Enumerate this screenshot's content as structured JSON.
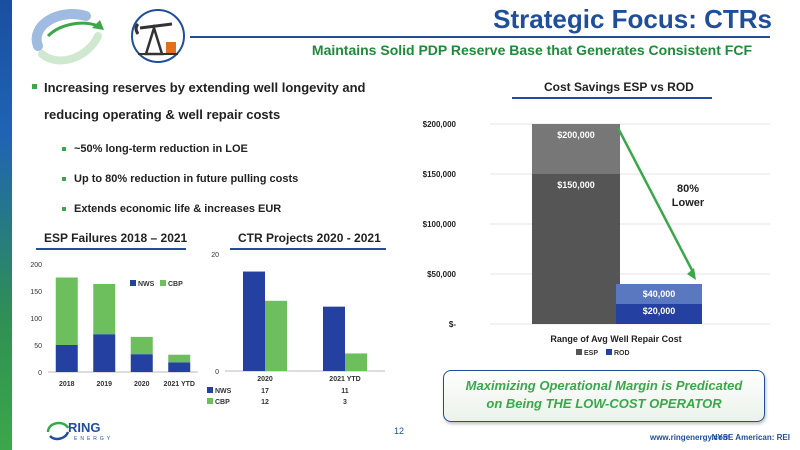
{
  "header": {
    "title": "Strategic Focus: CTRs",
    "subtitle": "Maintains Solid PDP Reserve Base that Generates Consistent FCF"
  },
  "bullets": {
    "main": "Increasing reserves by extending well longevity and reducing operating & well repair costs",
    "sub": [
      "~50% long-term reduction in LOE",
      "Up to 80% reduction in future pulling costs",
      "Extends economic life & increases EUR"
    ]
  },
  "colors": {
    "brand_blue": "#1f4e9b",
    "brand_green": "#3aa84a",
    "esp_dark": "#555555",
    "esp_light": "#777777",
    "rod_blue": "#2440a0",
    "rod_light": "#5a78c0"
  },
  "icons": [
    "ring-swoosh-logo-icon",
    "pump-jack-icon",
    "ring-energy-logo-icon"
  ],
  "chart_data": [
    {
      "type": "bar",
      "title": "ESP Failures 2018 – 2021",
      "categories": [
        "2018",
        "2019",
        "2020",
        "2021 YTD"
      ],
      "stacked": true,
      "series": [
        {
          "name": "NWS",
          "values": [
            50,
            70,
            33,
            18
          ]
        },
        {
          "name": "CBP",
          "values": [
            125,
            93,
            32,
            14
          ]
        }
      ],
      "ylim": [
        0,
        200
      ],
      "yticks": [
        "0",
        "50",
        "100",
        "150",
        "200"
      ],
      "legend": "inside top-right"
    },
    {
      "type": "bar",
      "title": "CTR Projects 2020 - 2021",
      "categories": [
        "2020",
        "2021 YTD"
      ],
      "stacked": false,
      "series": [
        {
          "name": "NWS",
          "values": [
            17,
            11
          ]
        },
        {
          "name": "CBP",
          "values": [
            12,
            3
          ]
        }
      ],
      "ylim": [
        0,
        20
      ],
      "yticks": [
        "0",
        "20"
      ],
      "legend": "data table below"
    },
    {
      "type": "bar",
      "title": "Cost Savings ESP vs ROD",
      "categories": [
        "Range of Avg Well Repair Cost"
      ],
      "stacked": true,
      "series": [
        {
          "name": "ESP",
          "low": 150000,
          "high": 200000,
          "low_label": "$150,000",
          "high_label": "$200,000"
        },
        {
          "name": "ROD",
          "low": 20000,
          "high": 40000,
          "low_label": "$20,000",
          "high_label": "$40,000"
        }
      ],
      "ylim": [
        0,
        200000
      ],
      "yticks": [
        "$-",
        "$50,000",
        "$100,000",
        "$150,000",
        "$200,000"
      ],
      "annotation": "80% Lower",
      "legend": "bottom"
    }
  ],
  "callout": {
    "line1": "Maximizing Operational Margin is Predicated",
    "line2": "on Being THE LOW-COST OPERATOR"
  },
  "footer": {
    "page": "12",
    "url": "www.ringenergy.com",
    "exchange": "NYSE American: REI",
    "logo_text": "RING",
    "logo_sub": "ENERGY"
  }
}
